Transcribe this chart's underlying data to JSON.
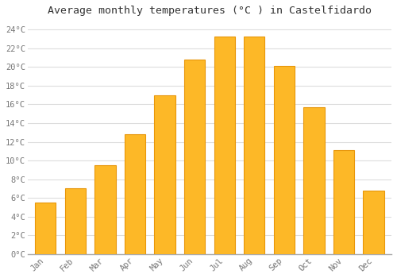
{
  "title": "Average monthly temperatures (°C ) in Castelfidardo",
  "months": [
    "Jan",
    "Feb",
    "Mar",
    "Apr",
    "May",
    "Jun",
    "Jul",
    "Aug",
    "Sep",
    "Oct",
    "Nov",
    "Dec"
  ],
  "values": [
    5.5,
    7.0,
    9.5,
    12.8,
    17.0,
    20.8,
    23.2,
    23.2,
    20.1,
    15.7,
    11.1,
    6.8
  ],
  "bar_color": "#FDB827",
  "bar_edge_color": "#E8960A",
  "background_color": "#FFFFFF",
  "plot_bg_color": "#FFFFFF",
  "grid_color": "#DDDDDD",
  "ylim": [
    0,
    25
  ],
  "yticks": [
    0,
    2,
    4,
    6,
    8,
    10,
    12,
    14,
    16,
    18,
    20,
    22,
    24
  ],
  "title_fontsize": 9.5,
  "tick_fontsize": 7.5,
  "font_family": "monospace",
  "bar_width": 0.7
}
